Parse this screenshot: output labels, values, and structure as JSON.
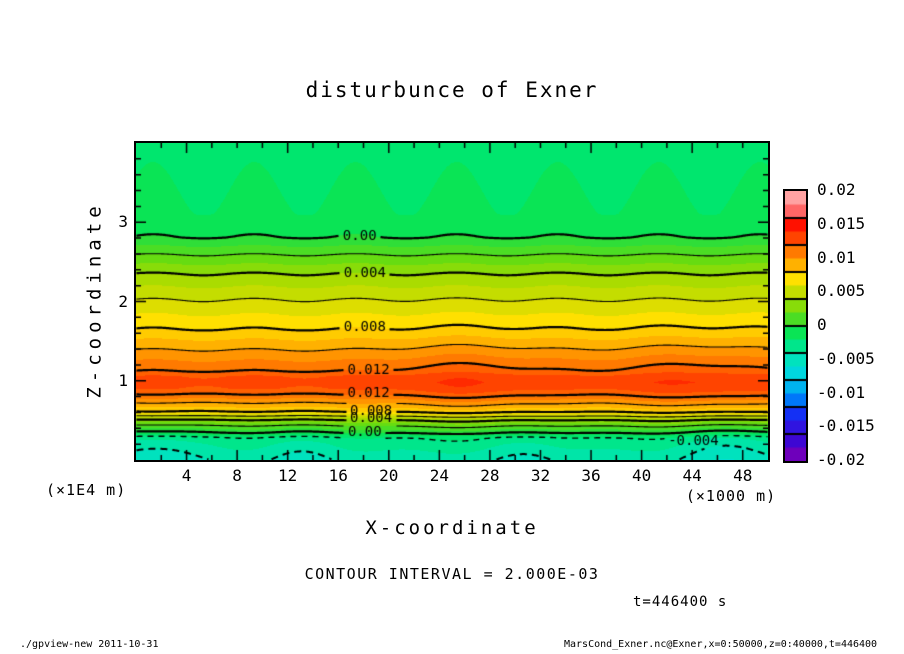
{
  "title": "disturbunce of Exner",
  "annotations": {
    "contour_interval": "CONTOUR INTERVAL = 2.000E-03",
    "time": "t=446400 s"
  },
  "footer": {
    "left": "./gpview-new  2011-10-31",
    "right": "MarsCond_Exner.nc@Exner,x=0:50000,z=0:40000,t=446400"
  },
  "axes": {
    "x": {
      "label": "X-coordinate",
      "unit": "(×1000 m)",
      "range": [
        0,
        50
      ],
      "tick_labels": [
        4,
        8,
        12,
        16,
        20,
        24,
        28,
        32,
        36,
        40,
        44,
        48
      ],
      "minor_step": 2
    },
    "z": {
      "label": "Z-coordinate",
      "unit": "(×1E4 m)",
      "range": [
        0,
        4
      ],
      "tick_labels": [
        1,
        2,
        3
      ],
      "minor_step": 0.2
    }
  },
  "colorbar": {
    "labels": [
      "0.02",
      "0.015",
      "0.01",
      "0.005",
      "0",
      "-0.005",
      "-0.01",
      "-0.015",
      "-0.02"
    ],
    "range": [
      -0.02,
      0.02
    ],
    "patch_step": 0.002,
    "box_step": 0.004
  },
  "chart_data": {
    "type": "heatmap",
    "subtype": "filled-contour",
    "title": "disturbunce of Exner",
    "xlabel": "X-coordinate",
    "ylabel": "Z-coordinate",
    "x_range": [
      0,
      50
    ],
    "z_range": [
      0,
      4
    ],
    "value_range": [
      -0.02,
      0.02
    ],
    "contour_interval": 0.002,
    "tone_bin": 0.001,
    "levels": [
      -0.004,
      -0.002,
      0,
      0.002,
      0.004,
      0.006,
      0.008,
      0.01,
      0.012
    ],
    "thick_level_multiple": 0.004,
    "profile": [
      [
        0.0,
        -0.0036
      ],
      [
        0.2,
        -0.0026
      ],
      [
        0.28,
        -0.002
      ],
      [
        0.34,
        0.0
      ],
      [
        0.43,
        0.002
      ],
      [
        0.505,
        0.004
      ],
      [
        0.555,
        0.006
      ],
      [
        0.61,
        0.008
      ],
      [
        0.72,
        0.01
      ],
      [
        0.83,
        0.012
      ],
      [
        0.9,
        0.013
      ],
      [
        0.98,
        0.0133
      ],
      [
        1.06,
        0.013
      ],
      [
        1.12,
        0.012
      ],
      [
        1.39,
        0.01
      ],
      [
        1.65,
        0.008
      ],
      [
        2.02,
        0.006
      ],
      [
        2.35,
        0.004
      ],
      [
        2.59,
        0.002
      ],
      [
        2.81,
        0.0
      ],
      [
        3.1,
        -0.0009
      ],
      [
        4.0,
        -0.0012
      ]
    ],
    "bumps": [
      {
        "ax": 26,
        "sx": 5,
        "az": 0.95,
        "sz": 0.62,
        "amp": 0.0008
      },
      {
        "ax": 44,
        "sx": 5.5,
        "az": 0.95,
        "sz": 0.6,
        "amp": 0.0008
      },
      {
        "ax": 1.5,
        "sx": 3.5,
        "az": 0.0,
        "sz": 0.4,
        "amp": -0.0014
      },
      {
        "ax": 13,
        "sx": 3,
        "az": 0.0,
        "sz": 0.38,
        "amp": -0.0009
      },
      {
        "ax": 31,
        "sx": 3,
        "az": 0.0,
        "sz": 0.35,
        "amp": -0.0008
      },
      {
        "ax": 47,
        "sx": 4,
        "az": 0.05,
        "sz": 0.45,
        "amp": -0.0015
      }
    ],
    "wave": {
      "amp": 0.00012,
      "period": 8,
      "phase": 0.5
    },
    "palette_anchors": [
      [
        -0.02,
        "#9900AA"
      ],
      [
        -0.017,
        "#4400CC"
      ],
      [
        -0.0145,
        "#2222EE"
      ],
      [
        -0.012,
        "#0044FF"
      ],
      [
        -0.0095,
        "#0099F5"
      ],
      [
        -0.0075,
        "#00CCE8"
      ],
      [
        -0.0055,
        "#00DFD4"
      ],
      [
        -0.0035,
        "#00E5A8"
      ],
      [
        -0.0015,
        "#00E66E"
      ],
      [
        -0.0005,
        "#0AE455"
      ],
      [
        0.0005,
        "#2FDE38"
      ],
      [
        0.0025,
        "#66DC11"
      ],
      [
        0.0045,
        "#AADC00"
      ],
      [
        0.0065,
        "#DDDD00"
      ],
      [
        0.0075,
        "#FFE000"
      ],
      [
        0.009,
        "#FFC000"
      ],
      [
        0.0105,
        "#FF9400"
      ],
      [
        0.0125,
        "#FF6000"
      ],
      [
        0.0135,
        "#FF4400"
      ],
      [
        0.0155,
        "#FF1100"
      ],
      [
        0.017,
        "#FF5555"
      ],
      [
        0.019,
        "#FF9999"
      ],
      [
        0.02,
        "#FFAAAA"
      ]
    ],
    "contour_labels": [
      {
        "text": "0.00",
        "x": 17.7,
        "z": 2.82
      },
      {
        "text": "0.004",
        "x": 18.1,
        "z": 2.36
      },
      {
        "text": "0.008",
        "x": 18.1,
        "z": 1.67
      },
      {
        "text": "0.012",
        "x": 18.4,
        "z": 1.13
      },
      {
        "text": "0.012",
        "x": 18.4,
        "z": 0.84
      },
      {
        "text": "0.008",
        "x": 18.6,
        "z": 0.62
      },
      {
        "text": "0.004",
        "x": 18.6,
        "z": 0.52
      },
      {
        "text": "0.00",
        "x": 18.1,
        "z": 0.345
      },
      {
        "text": "-0.004",
        "x": 44.1,
        "z": 0.235
      }
    ]
  }
}
